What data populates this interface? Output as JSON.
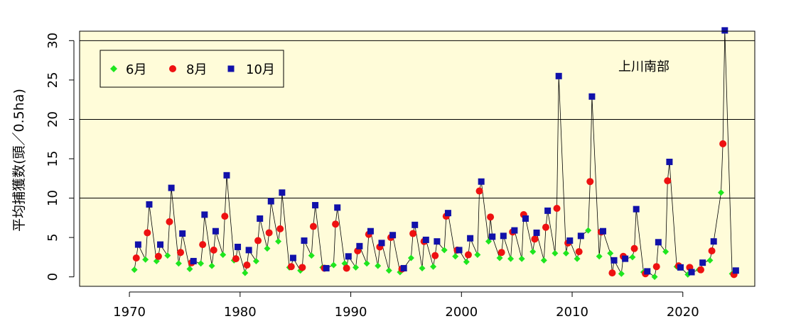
{
  "chart_data": {
    "type": "line",
    "title": "",
    "xlabel": "",
    "ylabel": "平均捕獲数(頭／0.5ha)",
    "annotation": "上川南部",
    "xlim": [
      1965.5,
      2026.5
    ],
    "ylim": [
      -1.2,
      31.2
    ],
    "x_ticks": [
      1970,
      1980,
      1990,
      2000,
      2010,
      2020
    ],
    "y_ticks": [
      0,
      5,
      10,
      15,
      20,
      25,
      30
    ],
    "h_lines": [
      10,
      20,
      30
    ],
    "legend_position": "top-left",
    "background_color": "#fffcd9",
    "colors": {
      "jun": "#1ee61e",
      "aug": "#ee1111",
      "oct": "#1111aa",
      "line": "#000000"
    },
    "series": [
      {
        "name": "6月",
        "marker": "diamond",
        "color": "#1ee61e"
      },
      {
        "name": "8月",
        "marker": "circle",
        "color": "#ee1111"
      },
      {
        "name": "10月",
        "marker": "square",
        "color": "#1111aa"
      }
    ],
    "years": [
      1970,
      1971,
      1972,
      1973,
      1974,
      1975,
      1976,
      1977,
      1978,
      1979,
      1980,
      1981,
      1982,
      1983,
      1984,
      1985,
      1986,
      1987,
      1988,
      1989,
      1990,
      1991,
      1992,
      1993,
      1994,
      1995,
      1996,
      1997,
      1998,
      1999,
      2000,
      2001,
      2002,
      2003,
      2004,
      2005,
      2006,
      2007,
      2008,
      2009,
      2010,
      2011,
      2012,
      2013,
      2014,
      2015,
      2016,
      2017,
      2018,
      2019,
      2020,
      2021,
      2022,
      2023,
      2024
    ],
    "jun": [
      0.9,
      2.2,
      2.0,
      2.7,
      1.7,
      1.0,
      1.7,
      1.4,
      2.8,
      2.1,
      0.5,
      2.0,
      3.6,
      4.5,
      1.2,
      0.8,
      2.7,
      1.2,
      1.5,
      1.7,
      1.2,
      1.7,
      1.4,
      0.8,
      0.6,
      2.4,
      1.1,
      1.3,
      3.4,
      2.6,
      1.9,
      2.8,
      4.5,
      2.4,
      2.3,
      2.3,
      3.2,
      2.1,
      3.0,
      3.0,
      2.3,
      5.9,
      2.6,
      3.0,
      0.4,
      2.5,
      0.6,
      0.0,
      3.2,
      1.3,
      0.3,
      0.9,
      2.1,
      10.7,
      0.4
    ],
    "aug": [
      2.4,
      5.6,
      2.6,
      7.0,
      3.1,
      1.8,
      4.1,
      3.4,
      7.7,
      2.3,
      1.5,
      4.6,
      5.6,
      6.1,
      1.3,
      1.2,
      6.4,
      1.1,
      6.7,
      1.1,
      3.3,
      5.4,
      3.8,
      5.0,
      1.0,
      5.5,
      4.5,
      2.7,
      7.7,
      3.4,
      2.8,
      10.9,
      7.6,
      3.1,
      5.7,
      7.9,
      4.8,
      6.3,
      8.7,
      4.3,
      3.2,
      12.1,
      5.7,
      0.5,
      2.6,
      3.6,
      0.4,
      1.3,
      12.2,
      1.4,
      1.2,
      0.9,
      3.3,
      16.9,
      0.3
    ],
    "oct": [
      4.1,
      9.2,
      4.1,
      11.3,
      5.5,
      2.0,
      7.9,
      5.8,
      12.9,
      3.8,
      3.4,
      7.4,
      9.6,
      10.7,
      2.4,
      4.6,
      9.1,
      1.1,
      8.8,
      2.6,
      3.9,
      5.8,
      4.3,
      5.3,
      1.1,
      6.6,
      4.7,
      4.5,
      8.1,
      3.4,
      4.9,
      12.1,
      5.1,
      5.2,
      5.9,
      7.4,
      5.6,
      8.4,
      25.5,
      4.6,
      5.2,
      22.9,
      5.8,
      2.1,
      2.3,
      8.6,
      0.7,
      4.4,
      14.6,
      1.2,
      0.6,
      1.8,
      4.5,
      31.3,
      0.8
    ]
  }
}
